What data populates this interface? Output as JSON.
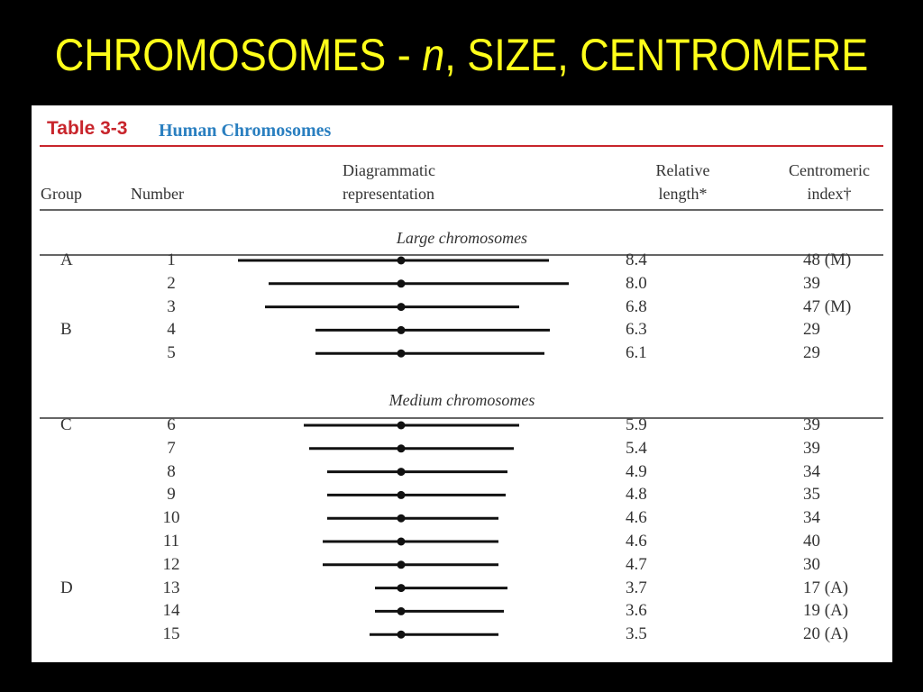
{
  "slide": {
    "title_before": "CHROMOSOMES - ",
    "title_italic": "n",
    "title_after": ", SIZE, CENTROMERE"
  },
  "table": {
    "label": "Table 3-3",
    "name": "Human Chromosomes",
    "headers": {
      "group": "Group",
      "number": "Number",
      "diagram_line1": "Diagrammatic",
      "diagram_line2": "representation",
      "length_line1": "Relative",
      "length_line2": "length*",
      "index_line1": "Centromeric",
      "index_line2": "index†"
    },
    "sections": [
      {
        "title": "Large chromosomes",
        "rows": [
          {
            "group": "A",
            "number": "1",
            "length": "8.4",
            "index": "48 (M)"
          },
          {
            "group": "",
            "number": "2",
            "length": "8.0",
            "index": "39"
          },
          {
            "group": "",
            "number": "3",
            "length": "6.8",
            "index": "47 (M)"
          },
          {
            "group": "B",
            "number": "4",
            "length": "6.3",
            "index": "29"
          },
          {
            "group": "",
            "number": "5",
            "length": "6.1",
            "index": "29"
          }
        ]
      },
      {
        "title": "Medium chromosomes",
        "rows": [
          {
            "group": "C",
            "number": "6",
            "length": "5.9",
            "index": "39"
          },
          {
            "group": "",
            "number": "7",
            "length": "5.4",
            "index": "39"
          },
          {
            "group": "",
            "number": "8",
            "length": "4.9",
            "index": "34"
          },
          {
            "group": "",
            "number": "9",
            "length": "4.8",
            "index": "35"
          },
          {
            "group": "",
            "number": "10",
            "length": "4.6",
            "index": "34"
          },
          {
            "group": "",
            "number": "11",
            "length": "4.6",
            "index": "40"
          },
          {
            "group": "",
            "number": "12",
            "length": "4.7",
            "index": "30"
          },
          {
            "group": "D",
            "number": "13",
            "length": "3.7",
            "index": "17 (A)"
          },
          {
            "group": "",
            "number": "14",
            "length": "3.6",
            "index": "19 (A)"
          },
          {
            "group": "",
            "number": "15",
            "length": "3.5",
            "index": "20 (A)"
          }
        ]
      }
    ]
  },
  "colors": {
    "background": "#000000",
    "title": "#ffff1a",
    "table_label": "#c8252c",
    "table_name": "#2a7fc0"
  }
}
